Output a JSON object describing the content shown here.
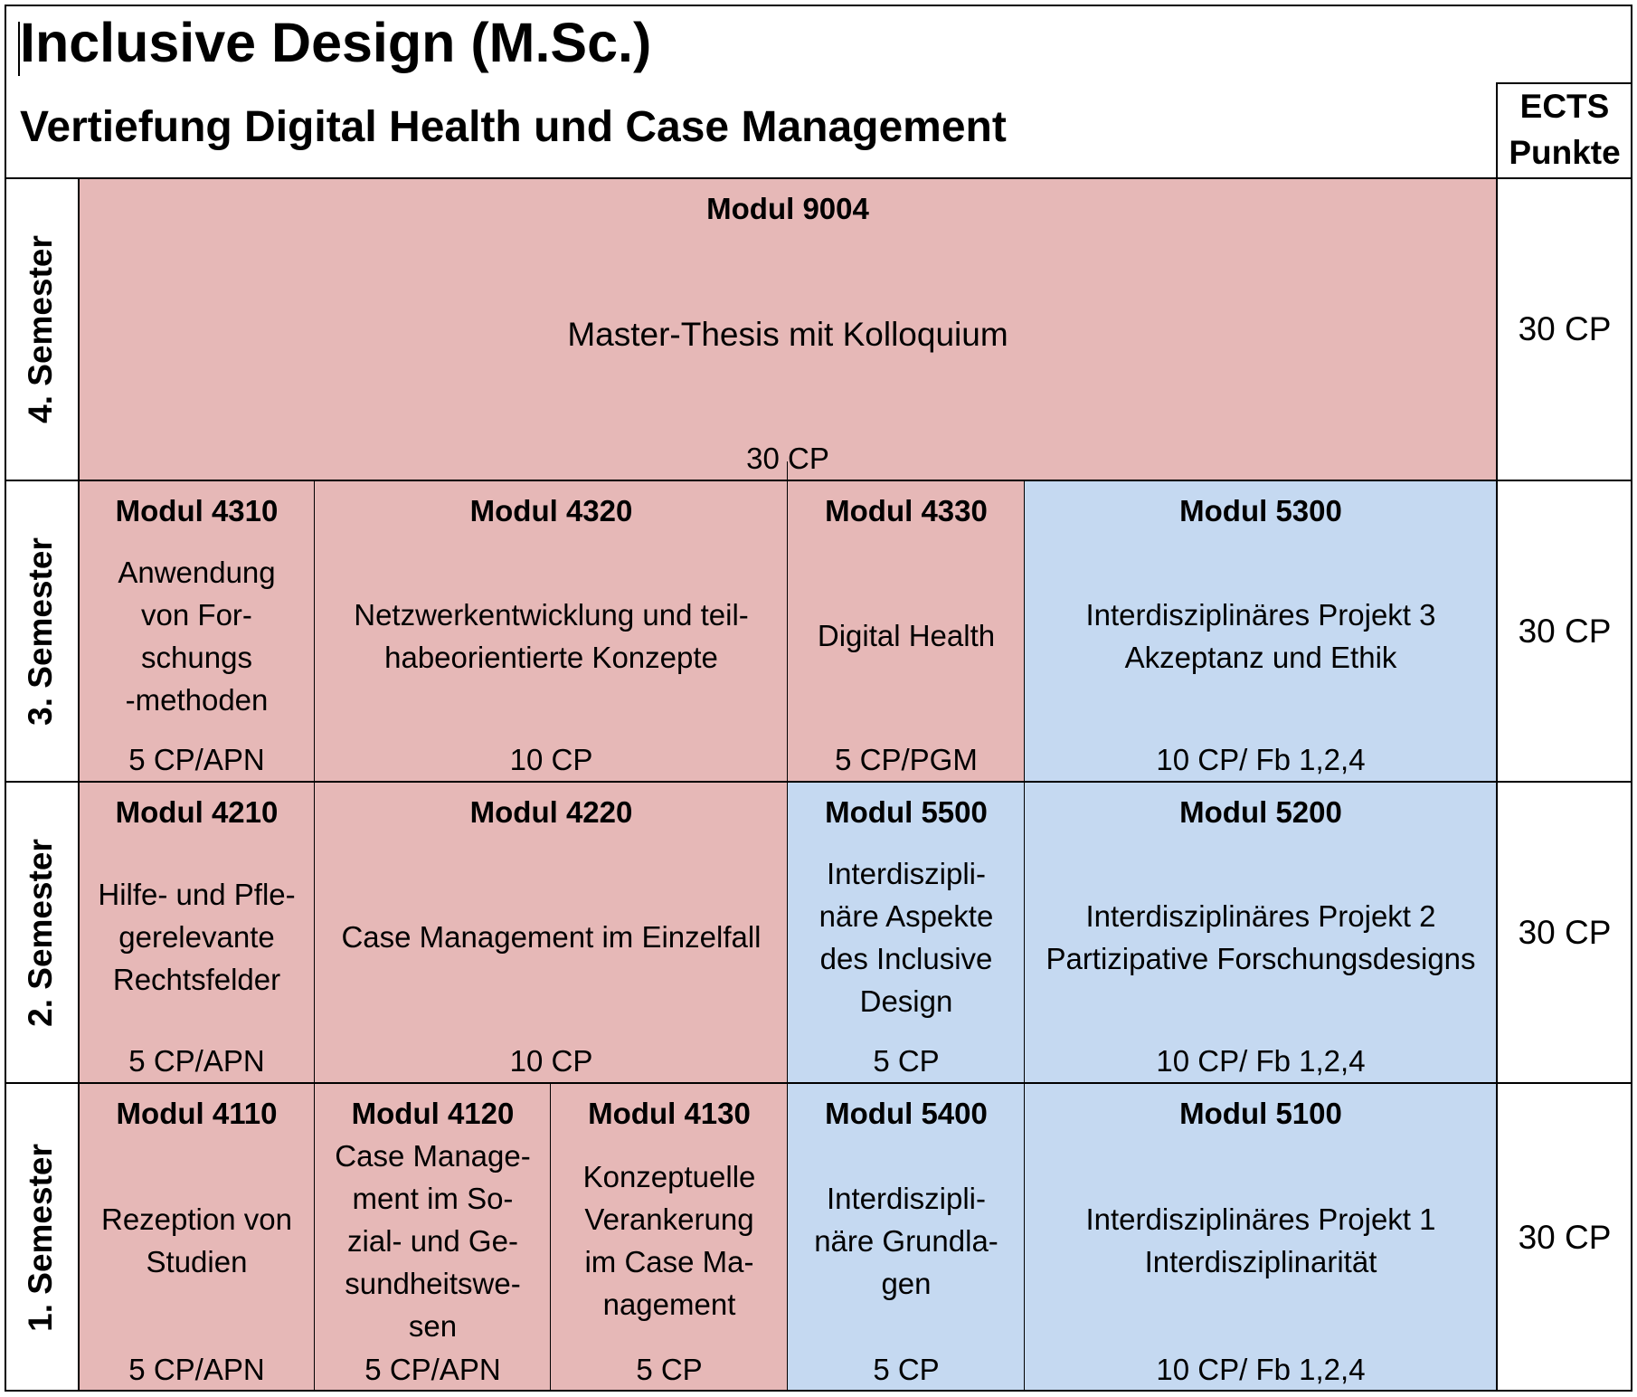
{
  "title": "Inclusive Design (M.Sc.)",
  "subtitle": "Vertiefung Digital Health und Case Management",
  "ects_header": "ECTS\nPunkte",
  "colors": {
    "red": "#e6b8b7",
    "blue": "#c5d9f1"
  },
  "semesters": {
    "s4": {
      "label": "4. Semester",
      "ects": "30 CP"
    },
    "s3": {
      "label": "3. Semester",
      "ects": "30 CP"
    },
    "s2": {
      "label": "2. Semester",
      "ects": "30 CP"
    },
    "s1": {
      "label": "1. Semester",
      "ects": "30 CP"
    }
  },
  "modules": {
    "m9004": {
      "code": "Modul 9004",
      "title": "Master-Thesis mit Kolloquium",
      "cp": "30 CP",
      "color": "red"
    },
    "m4310": {
      "code": "Modul 4310",
      "title": "Anwendung\nvon For-\nschungs\n-methoden",
      "cp": "5 CP/APN",
      "color": "red"
    },
    "m4320": {
      "code": "Modul 4320",
      "title": "Netzwerkentwicklung und teil-\nhabeorientierte Konzepte",
      "cp": "10 CP",
      "color": "red"
    },
    "m4330": {
      "code": "Modul 4330",
      "title": "Digital Health",
      "cp": "5 CP/PGM",
      "color": "red"
    },
    "m5300": {
      "code": "Modul 5300",
      "title": "Interdisziplinäres Projekt 3\nAkzeptanz und Ethik",
      "cp": "10 CP/ Fb 1,2,4",
      "color": "blue"
    },
    "m4210": {
      "code": "Modul 4210",
      "title": "Hilfe- und Pfle-\ngerelevante\nRechtsfelder",
      "cp": "5 CP/APN",
      "color": "red"
    },
    "m4220": {
      "code": "Modul 4220",
      "title": "Case Management im Einzelfall",
      "cp": "10 CP",
      "color": "red"
    },
    "m5500": {
      "code": "Modul 5500",
      "title": "Interdiszipli-\nnäre Aspekte\ndes Inclusive\nDesign",
      "cp": "5 CP",
      "color": "blue"
    },
    "m5200": {
      "code": "Modul 5200",
      "title": "Interdisziplinäres Projekt 2\nPartizipative Forschungsdesigns",
      "cp": "10 CP/ Fb 1,2,4",
      "color": "blue"
    },
    "m4110": {
      "code": "Modul 4110",
      "title": "Rezeption von\nStudien",
      "cp": "5 CP/APN",
      "color": "red"
    },
    "m4120": {
      "code": "Modul 4120",
      "title": "Case Manage-\nment im So-\nzial- und Ge-\nsundheitswe-\nsen",
      "cp": "5 CP/APN",
      "color": "red"
    },
    "m4130": {
      "code": "Modul 4130",
      "title": "Konzeptuelle\nVerankerung\nim Case Ma-\nnagement",
      "cp": "5 CP",
      "color": "red"
    },
    "m5400": {
      "code": "Modul 5400",
      "title": "Interdiszipli-\nnäre Grundla-\ngen",
      "cp": "5 CP",
      "color": "blue"
    },
    "m5100": {
      "code": "Modul 5100",
      "title": "Interdisziplinäres Projekt 1\nInterdisziplinarität",
      "cp": "10 CP/ Fb 1,2,4",
      "color": "blue"
    }
  }
}
